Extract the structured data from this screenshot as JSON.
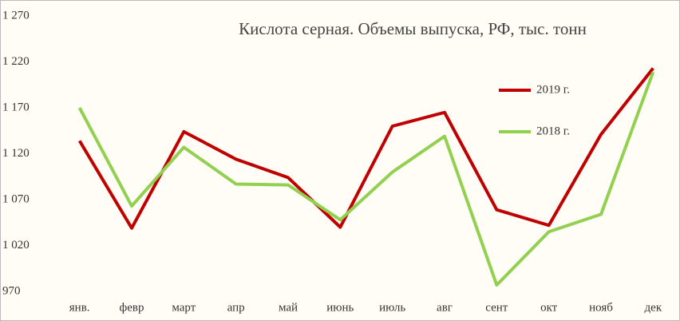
{
  "chart_data": {
    "type": "line",
    "title": "Кислота серная. Объемы выпуска, РФ, тыс. тонн",
    "categories": [
      "янв.",
      "февр",
      "март",
      "апр",
      "май",
      "июнь",
      "июль",
      "авг",
      "сент",
      "окт",
      "нояб",
      "дек"
    ],
    "series": [
      {
        "name": "2019 г.",
        "color": "#c00000",
        "values": [
          1134,
          1039,
          1144,
          1114,
          1094,
          1040,
          1150,
          1165,
          1059,
          1042,
          1141,
          1213
        ]
      },
      {
        "name": "2018 г.",
        "color": "#92d050",
        "values": [
          1170,
          1063,
          1127,
          1087,
          1086,
          1048,
          1100,
          1139,
          977,
          1035,
          1054,
          1209
        ]
      }
    ],
    "ylim": [
      970,
      1270
    ],
    "yticks": [
      970,
      {
        "value": 1020,
        "label": "1 020"
      },
      {
        "value": 1070,
        "label": "1 070"
      },
      {
        "value": 1120,
        "label": "1 120"
      },
      {
        "value": 1170,
        "label": "1 170"
      },
      {
        "value": 1220,
        "label": "1 220"
      },
      {
        "value": 1270,
        "label": "1 270"
      }
    ],
    "grid": false
  }
}
